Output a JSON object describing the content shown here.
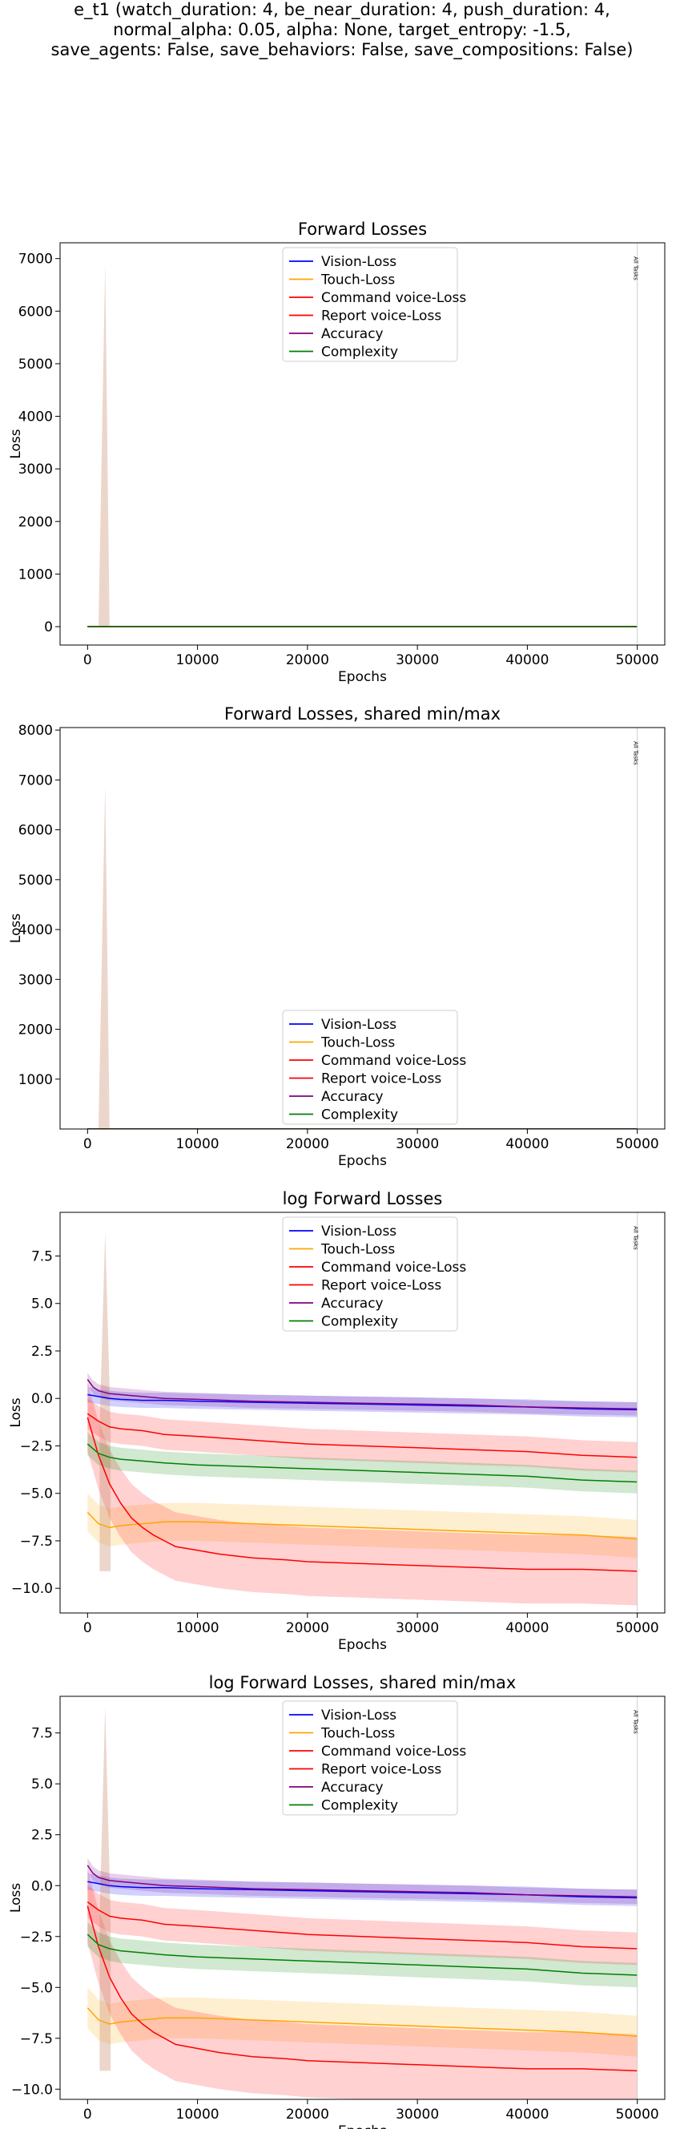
{
  "figure": {
    "title_lines": [
      "e_t1 (watch_duration: 4, be_near_duration: 4, push_duration: 4,",
      "normal_alpha: 0.05, alpha: None, target_entropy: -1.5,",
      "save_agents: False, save_behaviors: False, save_compositions: False)"
    ]
  },
  "colors": {
    "vision": "#0000ff",
    "touch": "#ffa500",
    "command": "#ff0000",
    "report": "#ff0000",
    "accuracy": "#800080",
    "complexity": "#008000"
  },
  "chart_data": [
    {
      "type": "line",
      "title": "Forward Losses",
      "xlabel": "Epochs",
      "ylabel": "Loss",
      "xlim": [
        -2500,
        52500
      ],
      "ylim": [
        -350,
        7300
      ],
      "xticks": [
        0,
        10000,
        20000,
        30000,
        40000,
        50000
      ],
      "yticks": [
        0,
        1000,
        2000,
        3000,
        4000,
        5000,
        6000,
        7000
      ],
      "legend_position": "top-center",
      "vline": {
        "x": 50000,
        "label": "All Tasks"
      },
      "series": [
        {
          "name": "Vision-Loss",
          "key": "vision",
          "x": [
            0,
            50000
          ],
          "y": [
            0,
            0
          ]
        },
        {
          "name": "Touch-Loss",
          "key": "touch",
          "x": [
            0,
            50000
          ],
          "y": [
            0,
            0
          ]
        },
        {
          "name": "Command voice-Loss",
          "key": "command",
          "x": [
            0,
            50000
          ],
          "y": [
            0,
            0
          ]
        },
        {
          "name": "Report voice-Loss",
          "key": "report",
          "x": [
            0,
            50000
          ],
          "y": [
            0,
            0
          ],
          "spike": {
            "x": [
              1000,
              1600,
              2000
            ],
            "upper": [
              0,
              6900,
              0
            ]
          }
        },
        {
          "name": "Accuracy",
          "key": "accuracy",
          "x": [
            0,
            50000
          ],
          "y": [
            0,
            0
          ]
        },
        {
          "name": "Complexity",
          "key": "complexity",
          "x": [
            0,
            50000
          ],
          "y": [
            0,
            0
          ]
        }
      ]
    },
    {
      "type": "line",
      "title": "Forward Losses, shared min/max",
      "xlabel": "Epochs",
      "ylabel": "Loss",
      "xlim": [
        -2500,
        52500
      ],
      "ylim": [
        0,
        8050
      ],
      "xticks": [
        0,
        10000,
        20000,
        30000,
        40000,
        50000
      ],
      "yticks": [
        1000,
        2000,
        3000,
        4000,
        5000,
        6000,
        7000,
        8000
      ],
      "legend_position": "bottom-center",
      "vline": {
        "x": 50000,
        "label": "All Tasks"
      },
      "series": [
        {
          "name": "Vision-Loss",
          "key": "vision",
          "x": [
            0,
            50000
          ],
          "y": [
            0,
            0
          ]
        },
        {
          "name": "Touch-Loss",
          "key": "touch",
          "x": [
            0,
            50000
          ],
          "y": [
            0,
            0
          ]
        },
        {
          "name": "Command voice-Loss",
          "key": "command",
          "x": [
            0,
            50000
          ],
          "y": [
            0,
            0
          ]
        },
        {
          "name": "Report voice-Loss",
          "key": "report",
          "x": [
            0,
            50000
          ],
          "y": [
            0,
            0
          ],
          "spike": {
            "x": [
              1000,
              1600,
              2000
            ],
            "upper": [
              0,
              6900,
              0
            ]
          }
        },
        {
          "name": "Accuracy",
          "key": "accuracy",
          "x": [
            0,
            50000
          ],
          "y": [
            0,
            0
          ]
        },
        {
          "name": "Complexity",
          "key": "complexity",
          "x": [
            0,
            50000
          ],
          "y": [
            0,
            0
          ]
        }
      ]
    },
    {
      "type": "line",
      "title": "log Forward Losses",
      "xlabel": "Epochs",
      "ylabel": "Loss",
      "xlim": [
        -2500,
        52500
      ],
      "ylim": [
        -11.3,
        9.8
      ],
      "xticks": [
        0,
        10000,
        20000,
        30000,
        40000,
        50000
      ],
      "yticks": [
        -10.0,
        -7.5,
        -5.0,
        -2.5,
        0.0,
        2.5,
        5.0,
        7.5
      ],
      "legend_position": "top-center",
      "vline": {
        "x": 50000,
        "label": "All Tasks"
      },
      "series": [
        {
          "name": "Vision-Loss",
          "key": "vision",
          "x": [
            0,
            1000,
            2000,
            3000,
            5000,
            7000,
            10000,
            15000,
            20000,
            25000,
            30000,
            35000,
            40000,
            45000,
            50000
          ],
          "y": [
            0.2,
            0.1,
            0.0,
            -0.05,
            -0.1,
            -0.1,
            -0.15,
            -0.2,
            -0.25,
            -0.3,
            -0.35,
            -0.4,
            -0.45,
            -0.55,
            -0.6
          ],
          "band": 0.4
        },
        {
          "name": "Touch-Loss",
          "key": "touch",
          "x": [
            0,
            500,
            1000,
            2000,
            3000,
            5000,
            7000,
            10000,
            15000,
            20000,
            25000,
            30000,
            35000,
            40000,
            45000,
            50000
          ],
          "y": [
            -6.0,
            -6.3,
            -6.6,
            -6.8,
            -6.7,
            -6.6,
            -6.5,
            -6.5,
            -6.6,
            -6.7,
            -6.8,
            -6.9,
            -7.0,
            -7.1,
            -7.2,
            -7.4
          ],
          "band": 1.0
        },
        {
          "name": "Command voice-Loss",
          "key": "command",
          "x": [
            0,
            1000,
            2000,
            3000,
            5000,
            7000,
            10000,
            15000,
            20000,
            25000,
            30000,
            35000,
            40000,
            45000,
            50000
          ],
          "y": [
            -0.8,
            -1.2,
            -1.5,
            -1.6,
            -1.7,
            -1.9,
            -2.0,
            -2.2,
            -2.4,
            -2.5,
            -2.6,
            -2.7,
            -2.8,
            -3.0,
            -3.1
          ],
          "band": 0.8
        },
        {
          "name": "Report voice-Loss",
          "key": "report",
          "x": [
            0,
            1000,
            2000,
            3000,
            4000,
            5000,
            6000,
            7000,
            8000,
            10000,
            12000,
            15000,
            18000,
            20000,
            25000,
            30000,
            35000,
            40000,
            45000,
            50000
          ],
          "y": [
            -1.0,
            -3.0,
            -4.5,
            -5.5,
            -6.3,
            -6.8,
            -7.2,
            -7.5,
            -7.8,
            -8.0,
            -8.2,
            -8.4,
            -8.5,
            -8.6,
            -8.7,
            -8.8,
            -8.9,
            -9.0,
            -9.0,
            -9.1
          ],
          "band": 1.8,
          "spike": {
            "x": [
              1100,
              1600,
              2100
            ],
            "upper": [
              -1.5,
              8.8,
              -1.5
            ]
          }
        },
        {
          "name": "Accuracy",
          "key": "accuracy",
          "x": [
            0,
            500,
            1000,
            2000,
            3000,
            5000,
            7000,
            10000,
            15000,
            20000,
            25000,
            30000,
            35000,
            40000,
            45000,
            50000
          ],
          "y": [
            1.0,
            0.6,
            0.4,
            0.25,
            0.2,
            0.1,
            0.0,
            -0.05,
            -0.15,
            -0.2,
            -0.25,
            -0.3,
            -0.35,
            -0.45,
            -0.5,
            -0.55
          ],
          "band": 0.35
        },
        {
          "name": "Complexity",
          "key": "complexity",
          "x": [
            0,
            1000,
            2000,
            3000,
            5000,
            7000,
            10000,
            15000,
            20000,
            25000,
            30000,
            35000,
            40000,
            45000,
            50000
          ],
          "y": [
            -2.4,
            -2.9,
            -3.1,
            -3.2,
            -3.3,
            -3.4,
            -3.5,
            -3.6,
            -3.7,
            -3.8,
            -3.9,
            -4.0,
            -4.1,
            -4.3,
            -4.4
          ],
          "band": 0.6
        }
      ]
    },
    {
      "type": "line",
      "title": "log Forward Losses, shared min/max",
      "xlabel": "Epochs",
      "ylabel": "Loss",
      "xlim": [
        -2500,
        52500
      ],
      "ylim": [
        -10.5,
        9.3
      ],
      "xticks": [
        0,
        10000,
        20000,
        30000,
        40000,
        50000
      ],
      "yticks": [
        -10.0,
        -7.5,
        -5.0,
        -2.5,
        0.0,
        2.5,
        5.0,
        7.5
      ],
      "legend_position": "top-center",
      "vline": {
        "x": 50000,
        "label": "All Tasks"
      },
      "series": [
        {
          "name": "Vision-Loss",
          "key": "vision",
          "x": [
            0,
            1000,
            2000,
            3000,
            5000,
            7000,
            10000,
            15000,
            20000,
            25000,
            30000,
            35000,
            40000,
            45000,
            50000
          ],
          "y": [
            0.2,
            0.1,
            0.0,
            -0.05,
            -0.1,
            -0.1,
            -0.15,
            -0.2,
            -0.25,
            -0.3,
            -0.35,
            -0.4,
            -0.45,
            -0.55,
            -0.6
          ],
          "band": 0.4
        },
        {
          "name": "Touch-Loss",
          "key": "touch",
          "x": [
            0,
            500,
            1000,
            2000,
            3000,
            5000,
            7000,
            10000,
            15000,
            20000,
            25000,
            30000,
            35000,
            40000,
            45000,
            50000
          ],
          "y": [
            -6.0,
            -6.3,
            -6.6,
            -6.8,
            -6.7,
            -6.6,
            -6.5,
            -6.5,
            -6.6,
            -6.7,
            -6.8,
            -6.9,
            -7.0,
            -7.1,
            -7.2,
            -7.4
          ],
          "band": 1.0
        },
        {
          "name": "Command voice-Loss",
          "key": "command",
          "x": [
            0,
            1000,
            2000,
            3000,
            5000,
            7000,
            10000,
            15000,
            20000,
            25000,
            30000,
            35000,
            40000,
            45000,
            50000
          ],
          "y": [
            -0.8,
            -1.2,
            -1.5,
            -1.6,
            -1.7,
            -1.9,
            -2.0,
            -2.2,
            -2.4,
            -2.5,
            -2.6,
            -2.7,
            -2.8,
            -3.0,
            -3.1
          ],
          "band": 0.8
        },
        {
          "name": "Report voice-Loss",
          "key": "report",
          "x": [
            0,
            1000,
            2000,
            3000,
            4000,
            5000,
            6000,
            7000,
            8000,
            10000,
            12000,
            15000,
            18000,
            20000,
            25000,
            30000,
            35000,
            40000,
            45000,
            50000
          ],
          "y": [
            -1.0,
            -3.0,
            -4.5,
            -5.5,
            -6.3,
            -6.8,
            -7.2,
            -7.5,
            -7.8,
            -8.0,
            -8.2,
            -8.4,
            -8.5,
            -8.6,
            -8.7,
            -8.8,
            -8.9,
            -9.0,
            -9.0,
            -9.1
          ],
          "band": 1.8,
          "spike": {
            "x": [
              1100,
              1600,
              2100
            ],
            "upper": [
              -1.5,
              8.8,
              -1.5
            ]
          }
        },
        {
          "name": "Accuracy",
          "key": "accuracy",
          "x": [
            0,
            500,
            1000,
            2000,
            3000,
            5000,
            7000,
            10000,
            15000,
            20000,
            25000,
            30000,
            35000,
            40000,
            45000,
            50000
          ],
          "y": [
            1.0,
            0.6,
            0.4,
            0.25,
            0.2,
            0.1,
            0.0,
            -0.05,
            -0.15,
            -0.2,
            -0.25,
            -0.3,
            -0.35,
            -0.45,
            -0.5,
            -0.55
          ],
          "band": 0.35
        },
        {
          "name": "Complexity",
          "key": "complexity",
          "x": [
            0,
            1000,
            2000,
            3000,
            5000,
            7000,
            10000,
            15000,
            20000,
            25000,
            30000,
            35000,
            40000,
            45000,
            50000
          ],
          "y": [
            -2.4,
            -2.9,
            -3.1,
            -3.2,
            -3.3,
            -3.4,
            -3.5,
            -3.6,
            -3.7,
            -3.8,
            -3.9,
            -4.0,
            -4.1,
            -4.3,
            -4.4
          ],
          "band": 0.6
        }
      ]
    }
  ]
}
